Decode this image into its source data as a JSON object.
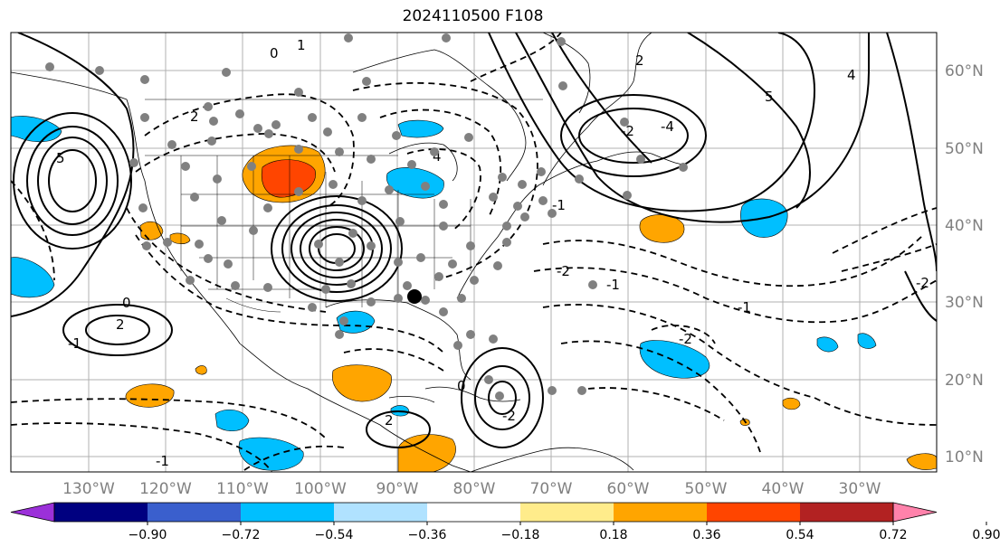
{
  "title": "2024110500 F108",
  "lon_labels": [
    "130°W",
    "120°W",
    "110°W",
    "100°W",
    "90°W",
    "80°W",
    "70°W",
    "60°W",
    "50°W",
    "40°W",
    "30°W"
  ],
  "lat_labels": [
    "60°N",
    "50°N",
    "40°N",
    "30°N",
    "20°N",
    "10°N"
  ],
  "colorbar": {
    "colors": [
      "#9b30d9",
      "#000080",
      "#3a5fcd",
      "#00bfff",
      "#b0e2ff",
      "#ffffff",
      "#ffec8b",
      "#ffa500",
      "#ff4500",
      "#b22222",
      "#ff82ab"
    ],
    "labels": [
      "−0.90",
      "−0.72",
      "−0.54",
      "−0.36",
      "−0.18",
      "0.18",
      "0.36",
      "0.54",
      "0.72",
      "0.90"
    ]
  },
  "contour_labels": [
    "1",
    "0",
    "2",
    "4",
    "5",
    "-2",
    "-4",
    "-1",
    "0",
    "2",
    "-2",
    "-1",
    "-1",
    "-2",
    "2",
    "0",
    "-2",
    "-1",
    "4",
    "5",
    "-2",
    "-1",
    "2"
  ],
  "colors": {
    "land_line": "#000000",
    "grid": "#b0b0b0",
    "positive_shade": "#ffa500",
    "strong_positive_shade": "#ff4500",
    "negative_shade": "#00bfff",
    "station_marker": "#808080",
    "focus_marker": "#000000"
  }
}
